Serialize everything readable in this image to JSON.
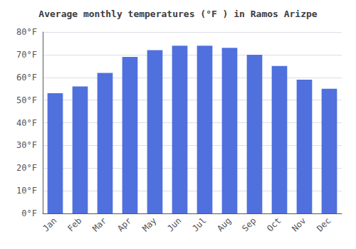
{
  "chart_data": {
    "type": "bar",
    "title": "Average monthly temperatures (°F ) in Ramos Arizpe",
    "categories": [
      "Jan",
      "Feb",
      "Mar",
      "Apr",
      "May",
      "Jun",
      "Jul",
      "Aug",
      "Sep",
      "Oct",
      "Nov",
      "Dec"
    ],
    "values": [
      53,
      56,
      62,
      69,
      72,
      74,
      74,
      73,
      70,
      65,
      59,
      55
    ],
    "ylim": [
      0,
      80
    ],
    "yticks": [
      {
        "value": 0,
        "label": "0°F"
      },
      {
        "value": 10,
        "label": "10°F"
      },
      {
        "value": 20,
        "label": "20°F"
      },
      {
        "value": 30,
        "label": "30°F"
      },
      {
        "value": 40,
        "label": "40°F"
      },
      {
        "value": 50,
        "label": "50°F"
      },
      {
        "value": 60,
        "label": "60°F"
      },
      {
        "value": 70,
        "label": "70°F"
      },
      {
        "value": 80,
        "label": "80°F"
      }
    ],
    "grid": true
  }
}
